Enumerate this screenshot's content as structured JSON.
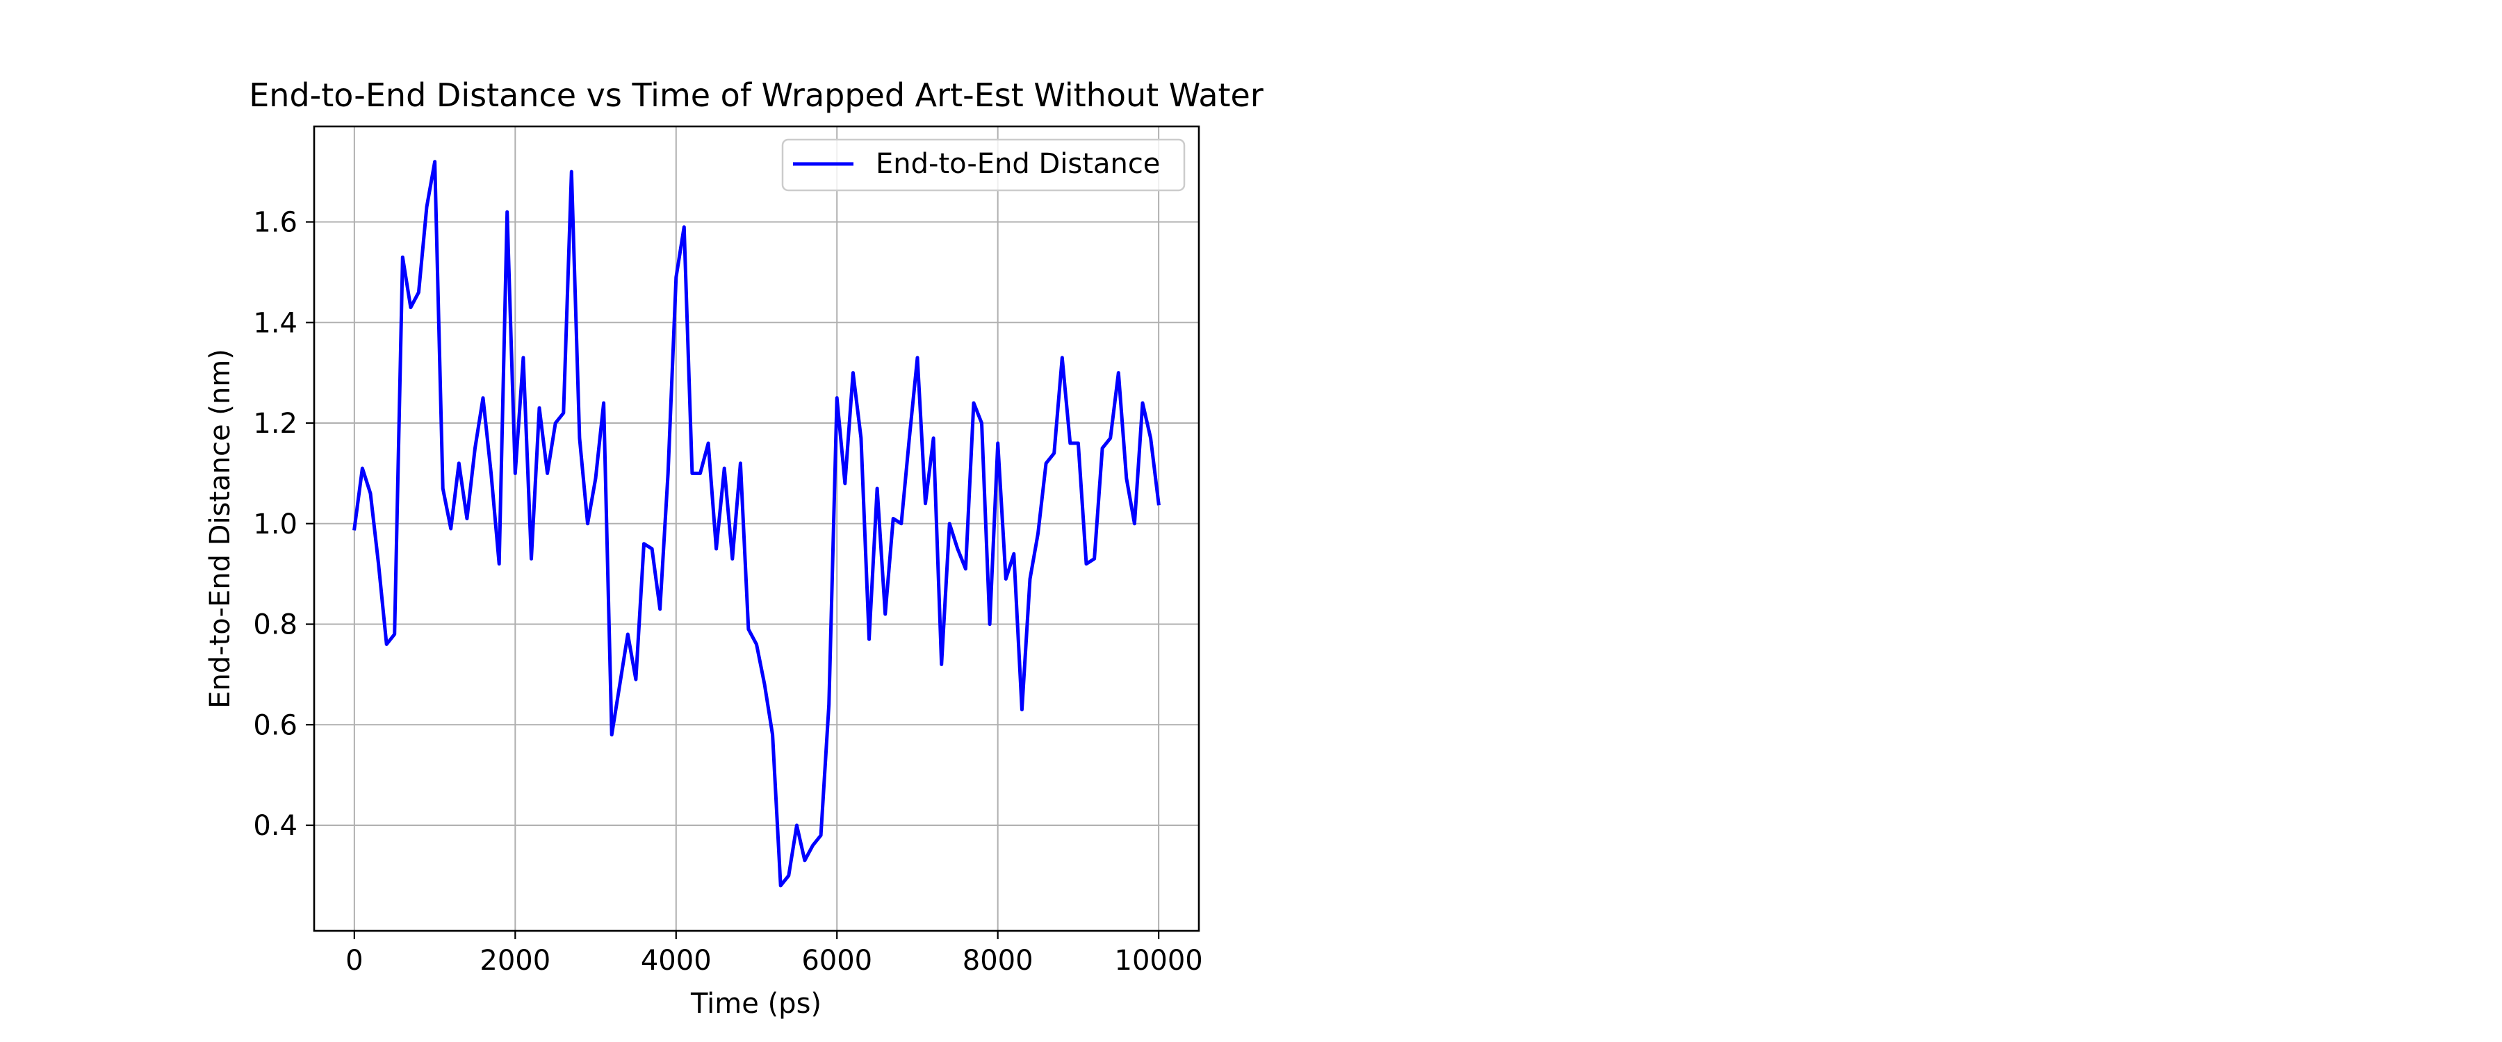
{
  "chart_data": {
    "type": "line",
    "title": "End-to-End Distance vs Time of Wrapped Art-Est Without Water",
    "xlabel": "Time (ps)",
    "ylabel": "End-to-End Distance (nm)",
    "xlim": [
      -500,
      10500
    ],
    "ylim": [
      0.19,
      1.79
    ],
    "xticks": [
      0,
      2000,
      4000,
      6000,
      8000,
      10000
    ],
    "xtick_labels": [
      "0",
      "2000",
      "4000",
      "6000",
      "8000",
      "10000"
    ],
    "yticks": [
      0.4,
      0.6,
      0.8,
      1.0,
      1.2,
      1.4,
      1.6
    ],
    "ytick_labels": [
      "0.4",
      "0.6",
      "0.8",
      "1.0",
      "1.2",
      "1.4",
      "1.6"
    ],
    "grid": true,
    "legend_position": "top-right",
    "series": [
      {
        "name": "End-to-End Distance",
        "color": "#0000ff",
        "x": [
          0,
          100,
          200,
          300,
          400,
          500,
          600,
          700,
          800,
          900,
          1000,
          1100,
          1200,
          1300,
          1400,
          1500,
          1600,
          1700,
          1800,
          1900,
          2000,
          2100,
          2200,
          2300,
          2400,
          2500,
          2600,
          2700,
          2800,
          2900,
          3000,
          3100,
          3200,
          3300,
          3400,
          3500,
          3600,
          3700,
          3800,
          3900,
          4000,
          4100,
          4200,
          4300,
          4400,
          4500,
          4600,
          4700,
          4800,
          4900,
          5000,
          5100,
          5200,
          5300,
          5400,
          5500,
          5600,
          5700,
          5800,
          5900,
          6000,
          6100,
          6200,
          6300,
          6400,
          6500,
          6600,
          6700,
          6800,
          6900,
          7000,
          7100,
          7200,
          7300,
          7400,
          7500,
          7600,
          7700,
          7800,
          7900,
          8000,
          8100,
          8200,
          8300,
          8400,
          8500,
          8600,
          8700,
          8800,
          8900,
          9000,
          9100,
          9200,
          9300,
          9400,
          9500,
          9600,
          9700,
          9800,
          9900,
          10000
        ],
        "y": [
          0.99,
          1.11,
          1.06,
          0.92,
          0.76,
          0.78,
          1.53,
          1.43,
          1.46,
          1.63,
          1.72,
          1.07,
          0.99,
          1.12,
          1.01,
          1.15,
          1.25,
          1.1,
          0.92,
          1.62,
          1.1,
          1.33,
          0.93,
          1.23,
          1.1,
          1.2,
          1.22,
          1.7,
          1.17,
          1.0,
          1.09,
          1.24,
          0.58,
          0.68,
          0.78,
          0.69,
          0.96,
          0.95,
          0.83,
          1.1,
          1.49,
          1.59,
          1.1,
          1.1,
          1.16,
          0.95,
          1.11,
          0.93,
          1.12,
          0.79,
          0.76,
          0.68,
          0.58,
          0.28,
          0.3,
          0.4,
          0.33,
          0.36,
          0.38,
          0.64,
          1.25,
          1.08,
          1.3,
          1.17,
          0.77,
          1.07,
          0.82,
          1.01,
          1.0,
          1.17,
          1.33,
          1.04,
          1.17,
          0.72,
          1.0,
          0.95,
          0.91,
          1.24,
          1.2,
          0.8,
          1.16,
          0.89,
          0.94,
          0.63,
          0.89,
          0.98,
          1.12,
          1.14,
          1.33,
          1.16,
          1.16,
          0.92,
          0.93,
          1.15,
          1.17,
          1.3,
          1.09,
          1.0,
          1.24,
          1.17,
          1.04
        ]
      }
    ]
  }
}
